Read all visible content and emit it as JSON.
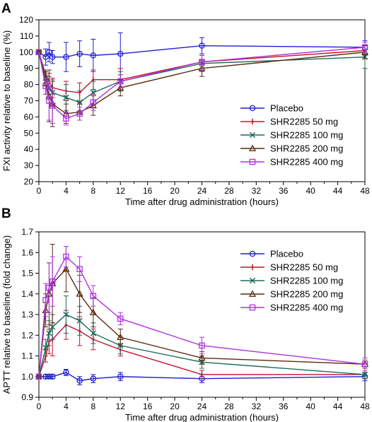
{
  "chart_data": [
    {
      "type": "line",
      "panel_label": "A",
      "xlabel": "Time after drug administration (hours)",
      "ylabel": "FXI activity relative to baseline (%)",
      "xlim": [
        0,
        48
      ],
      "ylim": [
        20,
        120
      ],
      "xticks": [
        "0",
        "4",
        "8",
        "12",
        "16",
        "20",
        "24",
        "28",
        "32",
        "36",
        "40",
        "44",
        "48"
      ],
      "yticks": [
        "20",
        "30",
        "40",
        "50",
        "60",
        "70",
        "80",
        "90",
        "100",
        "110",
        "120"
      ],
      "grid": false,
      "legend_position": "center-right",
      "x": [
        0,
        1,
        1.5,
        2,
        4,
        6,
        8,
        12,
        24,
        48
      ],
      "series": [
        {
          "name": "Placebo",
          "color": "#1f1fd2",
          "marker": "circle",
          "values": [
            100,
            97,
            100,
            97,
            97,
            99,
            98,
            99,
            104,
            103
          ],
          "err": [
            0,
            5,
            6,
            4,
            9,
            8,
            10,
            13,
            5,
            4
          ]
        },
        {
          "name": "SHR2285 50 mg",
          "color": "#c8102e",
          "marker": "plus",
          "values": [
            100,
            86,
            82,
            78,
            76,
            75,
            83,
            83,
            94,
            101
          ],
          "err": [
            0,
            3,
            5,
            6,
            6,
            6,
            6,
            7,
            5,
            3
          ]
        },
        {
          "name": "SHR2285 100 mg",
          "color": "#1d6b5a",
          "marker": "x",
          "values": [
            100,
            84,
            78,
            75,
            72,
            69,
            75,
            82,
            93,
            97
          ],
          "err": [
            0,
            5,
            7,
            8,
            8,
            7,
            7,
            6,
            5,
            7
          ]
        },
        {
          "name": "SHR2285 200 mg",
          "color": "#5c2a0e",
          "marker": "triangle",
          "values": [
            100,
            81,
            73,
            68,
            62,
            63,
            67,
            78,
            90,
            100
          ],
          "err": [
            0,
            7,
            16,
            14,
            6,
            5,
            6,
            5,
            5,
            4
          ]
        },
        {
          "name": "SHR2285 400 mg",
          "color": "#b030e0",
          "marker": "square",
          "values": [
            100,
            79,
            70,
            67,
            59,
            62,
            69,
            82,
            94,
            103
          ],
          "err": [
            0,
            5,
            12,
            11,
            4,
            4,
            5,
            4,
            5,
            3
          ]
        }
      ]
    },
    {
      "type": "line",
      "panel_label": "B",
      "xlabel": "Time after drug administration (hours)",
      "ylabel": "APTT relative to baseline (fold change)",
      "xlim": [
        0,
        48
      ],
      "ylim": [
        0.9,
        1.7
      ],
      "xticks": [
        "0",
        "4",
        "8",
        "12",
        "16",
        "20",
        "24",
        "28",
        "32",
        "36",
        "40",
        "44",
        "48"
      ],
      "yticks": [
        "0.9",
        "1.0",
        "1.1",
        "1.2",
        "1.3",
        "1.4",
        "1.5",
        "1.6",
        "1.7"
      ],
      "grid": false,
      "legend_position": "top-right",
      "x": [
        0,
        1,
        1.5,
        2,
        4,
        6,
        8,
        12,
        24,
        48
      ],
      "series": [
        {
          "name": "Placebo",
          "color": "#1f1fd2",
          "marker": "circle",
          "values": [
            1.0,
            1.0,
            1.0,
            1.0,
            1.02,
            0.98,
            0.99,
            1.0,
            0.99,
            1.0
          ],
          "err": [
            0,
            0.01,
            0.01,
            0.01,
            0.015,
            0.02,
            0.02,
            0.02,
            0.02,
            0.02
          ]
        },
        {
          "name": "SHR2285 50 mg",
          "color": "#c8102e",
          "marker": "plus",
          "values": [
            1.0,
            1.1,
            1.17,
            1.18,
            1.25,
            1.22,
            1.18,
            1.13,
            1.01,
            1.01
          ],
          "err": [
            0,
            0.03,
            0.06,
            0.08,
            0.07,
            0.07,
            0.05,
            0.03,
            0.02,
            0.02
          ]
        },
        {
          "name": "SHR2285 100 mg",
          "color": "#1d6b5a",
          "marker": "x",
          "values": [
            1.0,
            1.14,
            1.21,
            1.24,
            1.3,
            1.27,
            1.21,
            1.15,
            1.07,
            1.01
          ],
          "err": [
            0,
            0.04,
            0.06,
            0.06,
            0.09,
            0.07,
            0.05,
            0.04,
            0.03,
            0.02
          ]
        },
        {
          "name": "SHR2285 200 mg",
          "color": "#5c2a0e",
          "marker": "triangle",
          "values": [
            1.0,
            1.32,
            1.4,
            1.45,
            1.52,
            1.4,
            1.31,
            1.19,
            1.09,
            1.06
          ],
          "err": [
            0,
            0.08,
            0.15,
            0.19,
            0.11,
            0.09,
            0.07,
            0.04,
            0.03,
            0.02
          ]
        },
        {
          "name": "SHR2285 400 mg",
          "color": "#b030e0",
          "marker": "square",
          "values": [
            1.0,
            1.37,
            1.43,
            1.46,
            1.58,
            1.52,
            1.39,
            1.28,
            1.15,
            1.06
          ],
          "err": [
            0,
            0.08,
            0.12,
            0.12,
            0.05,
            0.06,
            0.05,
            0.03,
            0.04,
            0.03
          ]
        }
      ]
    }
  ]
}
